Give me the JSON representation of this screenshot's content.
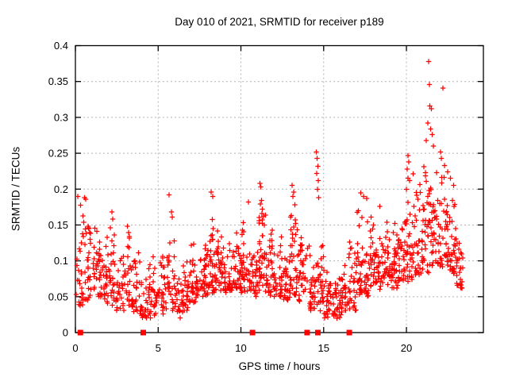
{
  "page": {
    "background": "#ffffff"
  },
  "chart_data": {
    "type": "scatter",
    "title": "Day 010 of 2021, SRMTID for receiver p189",
    "xlabel": "GPS time / hours",
    "ylabel": "SRMTID / TECUs",
    "xlim": [
      0,
      24.65
    ],
    "ylim": [
      0,
      0.4
    ],
    "xticks": [
      0,
      5,
      10,
      15,
      20
    ],
    "xtick_labels": [
      "0",
      "5",
      "10",
      "15",
      "20"
    ],
    "yticks": [
      0,
      0.05,
      0.1,
      0.15,
      0.2,
      0.25,
      0.3,
      0.35,
      0.4
    ],
    "ytick_labels": [
      "0",
      "0.05",
      "0.1",
      "0.15",
      "0.2",
      "0.25",
      "0.3",
      "0.35",
      "0.4"
    ],
    "grid": {
      "show": true,
      "color": "#b4b4b4",
      "dash": "2,3"
    },
    "border_color": "#000000",
    "random_seed": 7,
    "series": [
      {
        "name": "srmtid-points",
        "marker": "plus",
        "color": "#ff0000",
        "marker_size": 7,
        "density_envelope": {
          "format": [
            "x_start",
            "x_end",
            "y_min",
            "y_max",
            "count"
          ],
          "segments": [
            [
              0.05,
              0.5,
              0.035,
              0.185,
              26
            ],
            [
              0.5,
              1.0,
              0.045,
              0.175,
              30
            ],
            [
              1.0,
              1.5,
              0.05,
              0.155,
              30
            ],
            [
              1.5,
              2.0,
              0.04,
              0.165,
              30
            ],
            [
              2.0,
              2.5,
              0.035,
              0.16,
              28
            ],
            [
              2.5,
              3.0,
              0.03,
              0.125,
              28
            ],
            [
              3.0,
              3.5,
              0.03,
              0.145,
              28
            ],
            [
              3.5,
              4.0,
              0.025,
              0.115,
              26
            ],
            [
              4.0,
              4.5,
              0.02,
              0.105,
              26
            ],
            [
              4.5,
              5.0,
              0.02,
              0.115,
              26
            ],
            [
              5.0,
              5.5,
              0.025,
              0.125,
              26
            ],
            [
              5.5,
              6.0,
              0.03,
              0.15,
              26
            ],
            [
              6.0,
              6.5,
              0.02,
              0.115,
              26
            ],
            [
              6.5,
              7.0,
              0.03,
              0.11,
              28
            ],
            [
              7.0,
              7.5,
              0.04,
              0.135,
              32
            ],
            [
              7.5,
              8.0,
              0.05,
              0.165,
              34
            ],
            [
              8.0,
              8.5,
              0.055,
              0.19,
              36
            ],
            [
              8.5,
              9.0,
              0.05,
              0.17,
              34
            ],
            [
              9.0,
              9.5,
              0.055,
              0.15,
              32
            ],
            [
              9.5,
              10.0,
              0.06,
              0.15,
              32
            ],
            [
              10.0,
              10.5,
              0.055,
              0.155,
              34
            ],
            [
              10.5,
              11.0,
              0.05,
              0.15,
              32
            ],
            [
              11.0,
              11.5,
              0.055,
              0.195,
              36
            ],
            [
              11.5,
              12.0,
              0.05,
              0.155,
              32
            ],
            [
              12.0,
              12.5,
              0.05,
              0.14,
              30
            ],
            [
              12.5,
              13.0,
              0.045,
              0.15,
              30
            ],
            [
              13.0,
              13.5,
              0.05,
              0.195,
              32
            ],
            [
              13.5,
              14.0,
              0.04,
              0.165,
              30
            ],
            [
              14.0,
              14.5,
              0.03,
              0.135,
              30
            ],
            [
              14.5,
              15.0,
              0.03,
              0.155,
              30
            ],
            [
              15.0,
              15.5,
              0.02,
              0.1,
              28
            ],
            [
              15.5,
              16.0,
              0.02,
              0.09,
              28
            ],
            [
              16.0,
              16.5,
              0.025,
              0.105,
              28
            ],
            [
              16.5,
              17.0,
              0.03,
              0.14,
              30
            ],
            [
              17.0,
              17.5,
              0.05,
              0.18,
              32
            ],
            [
              17.5,
              18.0,
              0.05,
              0.185,
              32
            ],
            [
              18.0,
              18.5,
              0.06,
              0.175,
              32
            ],
            [
              18.5,
              19.0,
              0.065,
              0.165,
              32
            ],
            [
              19.0,
              19.5,
              0.06,
              0.17,
              32
            ],
            [
              19.5,
              20.0,
              0.07,
              0.185,
              32
            ],
            [
              20.0,
              20.5,
              0.07,
              0.23,
              34
            ],
            [
              20.5,
              21.0,
              0.08,
              0.22,
              34
            ],
            [
              21.0,
              21.5,
              0.08,
              0.3,
              36
            ],
            [
              21.5,
              22.0,
              0.09,
              0.27,
              34
            ],
            [
              22.0,
              22.5,
              0.09,
              0.235,
              36
            ],
            [
              22.5,
              23.0,
              0.08,
              0.225,
              34
            ],
            [
              23.0,
              23.45,
              0.06,
              0.15,
              26
            ]
          ]
        },
        "highlight_points": [
          [
            0.15,
            0.19
          ],
          [
            0.55,
            0.188
          ],
          [
            0.62,
            0.186
          ],
          [
            2.2,
            0.168
          ],
          [
            2.25,
            0.158
          ],
          [
            3.15,
            0.148
          ],
          [
            5.65,
            0.192
          ],
          [
            5.8,
            0.168
          ],
          [
            5.85,
            0.161
          ],
          [
            8.2,
            0.196
          ],
          [
            8.3,
            0.19
          ],
          [
            10.45,
            0.182
          ],
          [
            11.15,
            0.208
          ],
          [
            11.2,
            0.203
          ],
          [
            11.25,
            0.184
          ],
          [
            11.18,
            0.179
          ],
          [
            11.3,
            0.172
          ],
          [
            11.1,
            0.156
          ],
          [
            13.1,
            0.205
          ],
          [
            13.2,
            0.196
          ],
          [
            13.15,
            0.19
          ],
          [
            13.25,
            0.178
          ],
          [
            13.05,
            0.163
          ],
          [
            13.3,
            0.152
          ],
          [
            14.55,
            0.252
          ],
          [
            14.6,
            0.243
          ],
          [
            14.65,
            0.232
          ],
          [
            14.58,
            0.222
          ],
          [
            14.68,
            0.212
          ],
          [
            14.62,
            0.2
          ],
          [
            14.7,
            0.188
          ],
          [
            17.25,
            0.195
          ],
          [
            17.4,
            0.19
          ],
          [
            17.6,
            0.187
          ],
          [
            18.4,
            0.176
          ],
          [
            20.0,
            0.2
          ],
          [
            20.1,
            0.247
          ],
          [
            20.15,
            0.238
          ],
          [
            20.05,
            0.228
          ],
          [
            20.2,
            0.212
          ],
          [
            21.35,
            0.378
          ],
          [
            21.4,
            0.346
          ],
          [
            22.2,
            0.341
          ],
          [
            21.42,
            0.316
          ],
          [
            21.5,
            0.312
          ],
          [
            21.3,
            0.292
          ],
          [
            21.45,
            0.284
          ],
          [
            21.55,
            0.276
          ],
          [
            21.2,
            0.268
          ],
          [
            21.62,
            0.26
          ],
          [
            22.05,
            0.252
          ],
          [
            22.12,
            0.243
          ],
          [
            22.3,
            0.233
          ],
          [
            22.5,
            0.224
          ],
          [
            22.65,
            0.215
          ],
          [
            22.85,
            0.205
          ]
        ]
      },
      {
        "name": "event-markers",
        "marker": "filled-square",
        "color": "#ff0000",
        "marker_size": 7,
        "points": [
          [
            0.3,
            0
          ],
          [
            4.1,
            0
          ],
          [
            10.7,
            0
          ],
          [
            14.0,
            0
          ],
          [
            14.65,
            0
          ],
          [
            16.55,
            0
          ]
        ]
      }
    ]
  }
}
